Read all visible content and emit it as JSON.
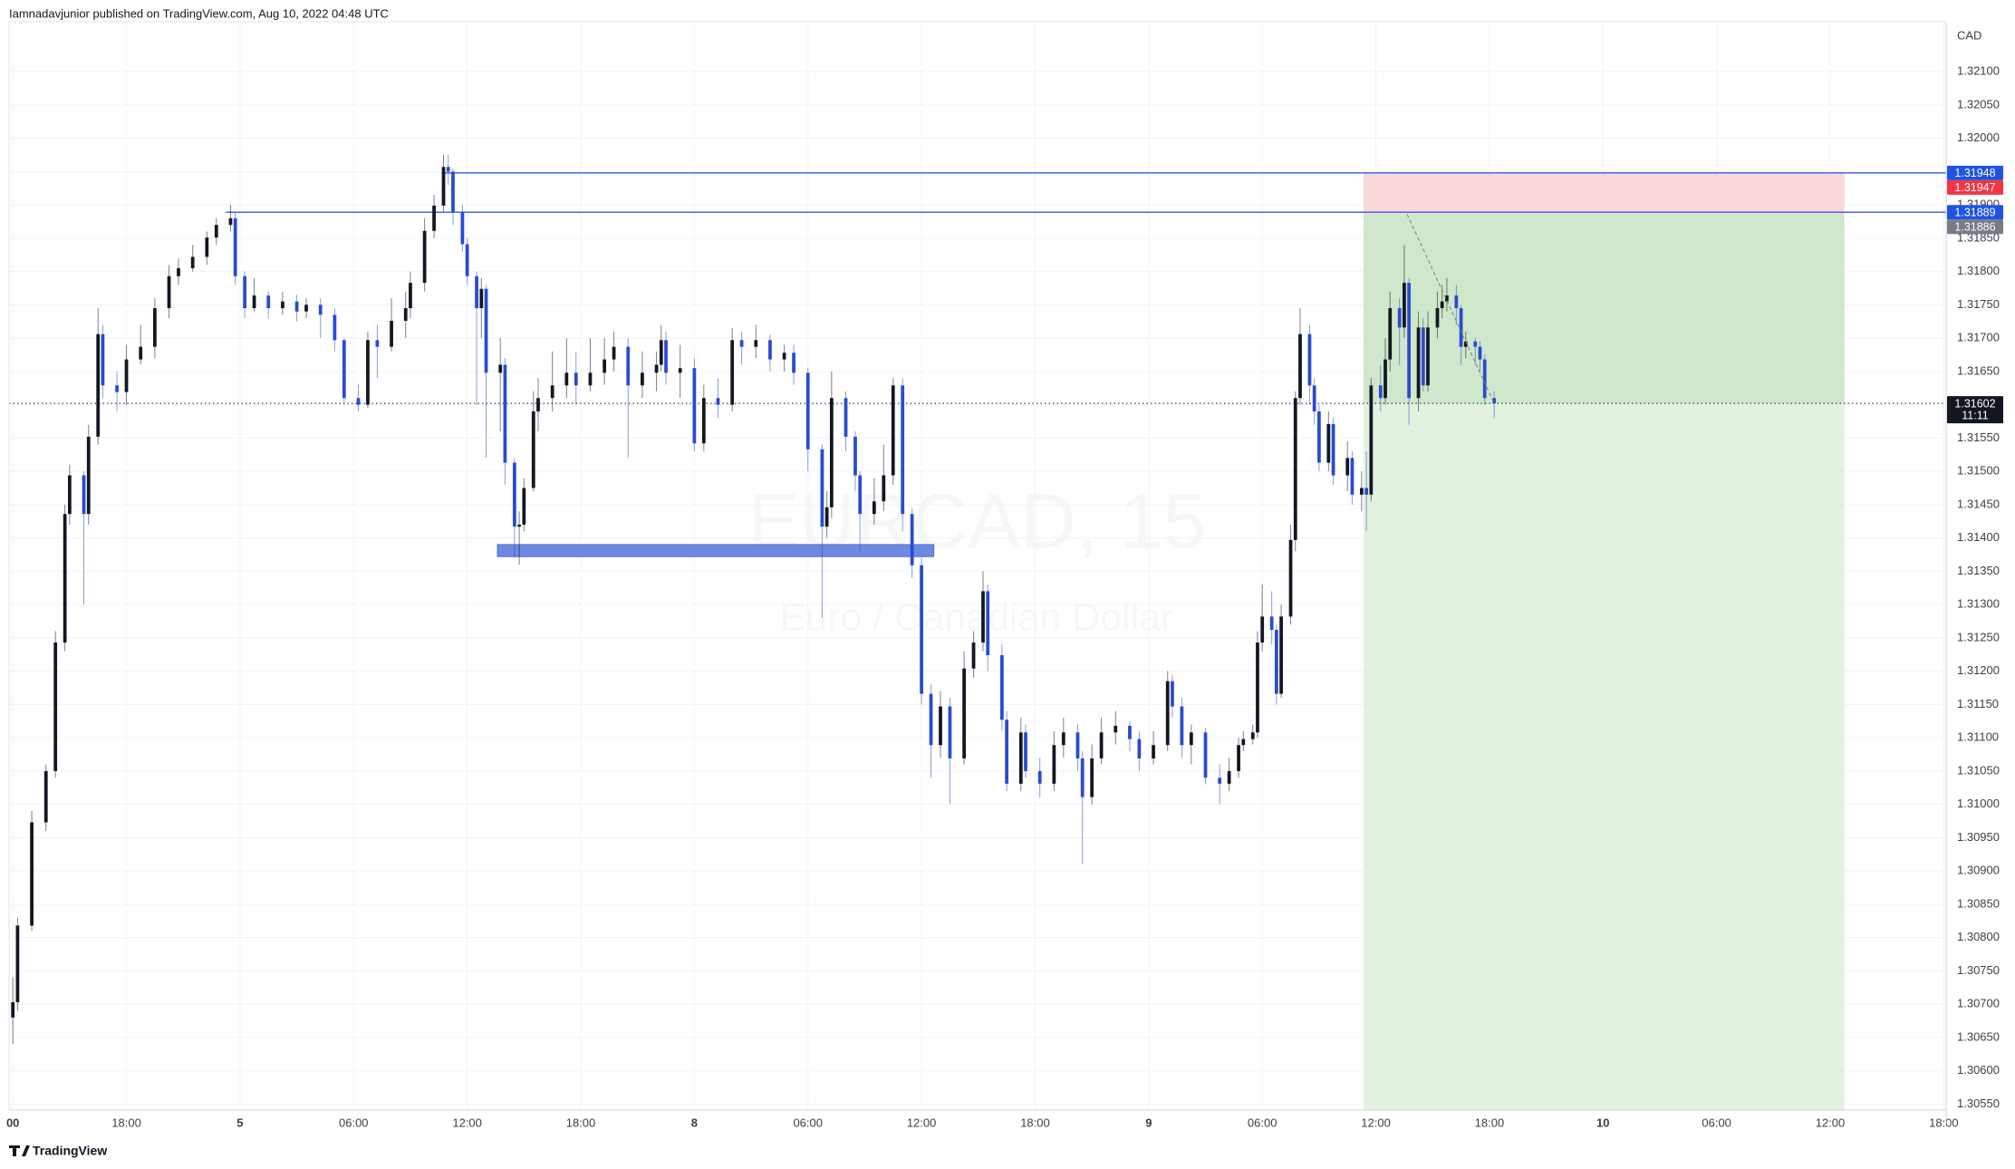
{
  "chart_data": {
    "type": "candlestick",
    "publisher_note": "Iamnadavjunior published on TradingView.com, Aug 10, 2022 04:48 UTC",
    "currency": "CAD",
    "logo": "TradingView",
    "watermark": {
      "symbol": "EURCAD, 15",
      "description": "Euro / Canadian Dollar"
    },
    "up_color": "#131722",
    "down_color": "#2a4bcf",
    "x": [
      0,
      1,
      4,
      7,
      9,
      11,
      12,
      15,
      16,
      18,
      19,
      22,
      24,
      27,
      30,
      33,
      35,
      38,
      41,
      43,
      46,
      47,
      49,
      51,
      54,
      57,
      60,
      62,
      65,
      68,
      70,
      73,
      75,
      77,
      80,
      83,
      84,
      87,
      89,
      91,
      92,
      93,
      95,
      96,
      98,
      99,
      100,
      103,
      104,
      106,
      107,
      108,
      110,
      111,
      114,
      117,
      119,
      122,
      125,
      127,
      130,
      133,
      136,
      137,
      138,
      141,
      144,
      146,
      149,
      152,
      154,
      157,
      160,
      163,
      165,
      168,
      171,
      172,
      173,
      176,
      178,
      179,
      182,
      184,
      186,
      188,
      190,
      192,
      194,
      196,
      198,
      201,
      203,
      205,
      206,
      209,
      210,
      213,
      214,
      217,
      220,
      222,
      225,
      226,
      228,
      230,
      233,
      236,
      238,
      241,
      244,
      245,
      247,
      249,
      252,
      255,
      257,
      259,
      260,
      262,
      263,
      264,
      266,
      267,
      268,
      270,
      271,
      272,
      274,
      275,
      276,
      278,
      279,
      282,
      283,
      285,
      286,
      287,
      289,
      290,
      291,
      293,
      294,
      295,
      297,
      298,
      299,
      301,
      302,
      303,
      305,
      306,
      307,
      309,
      310,
      311,
      313
    ],
    "open": [
      1.3068,
      1.30703,
      1.30818,
      1.30973,
      1.3105,
      1.31243,
      1.31436,
      1.31494,
      1.31436,
      1.31552,
      1.31706,
      1.31629,
      1.31619,
      1.31668,
      1.31687,
      1.31745,
      1.31793,
      1.31805,
      1.31822,
      1.31851,
      1.3187,
      1.3188,
      1.31793,
      1.31745,
      1.31764,
      1.31745,
      1.31755,
      1.3174,
      1.3175,
      1.31735,
      1.31697,
      1.3161,
      1.316,
      1.31697,
      1.31687,
      1.31726,
      1.31745,
      1.31783,
      1.31861,
      1.31899,
      1.31957,
      1.3195,
      1.3189,
      1.31841,
      1.31793,
      1.31745,
      1.31774,
      1.31648,
      1.3166,
      1.31513,
      1.31417,
      1.3142,
      1.31475,
      1.3159,
      1.3161,
      1.31629,
      1.31648,
      1.31629,
      1.31648,
      1.31668,
      1.31687,
      1.31629,
      1.31648,
      1.3166,
      1.31697,
      1.31648,
      1.31655,
      1.31542,
      1.3161,
      1.316,
      1.31697,
      1.31687,
      1.31697,
      1.31668,
      1.31678,
      1.31648,
      1.31533,
      1.31417,
      1.31446,
      1.3161,
      1.31552,
      1.31494,
      1.31436,
      1.31455,
      1.31494,
      1.31629,
      1.31436,
      1.31359,
      1.31166,
      1.31089,
      1.31147,
      1.31069,
      1.31204,
      1.31243,
      1.3132,
      1.31224,
      1.31127,
      1.31031,
      1.31108,
      1.3105,
      1.31031,
      1.31089,
      1.31108,
      1.31069,
      1.31011,
      1.31069,
      1.31108,
      1.31118,
      1.31098,
      1.31069,
      1.31089,
      1.31185,
      1.31147,
      1.31089,
      1.31108,
      1.3104,
      1.31031,
      1.3105,
      1.31089,
      1.31098,
      1.31108,
      1.31243,
      1.31282,
      1.31262,
      1.31166,
      1.31282,
      1.31397,
      1.3161,
      1.31706,
      1.31629,
      1.3159,
      1.31513,
      1.31571,
      1.31494,
      1.3152,
      1.31465,
      1.31475,
      1.31465,
      1.31629,
      1.3161,
      1.31668,
      1.31745,
      1.31716,
      1.31783,
      1.3161,
      1.31716,
      1.31629,
      1.31716,
      1.31745,
      1.31755,
      1.31764,
      1.31745,
      1.31687,
      1.31695,
      1.31687,
      1.31668,
      1.3161
    ],
    "high": [
      1.3074,
      1.3083,
      1.3099,
      1.3106,
      1.3126,
      1.3145,
      1.3151,
      1.315,
      1.3157,
      1.31745,
      1.3172,
      1.3165,
      1.3169,
      1.3172,
      1.3176,
      1.3181,
      1.3182,
      1.3184,
      1.3186,
      1.3188,
      1.319,
      1.3189,
      1.318,
      1.3179,
      1.3177,
      1.3177,
      1.31765,
      1.3176,
      1.3176,
      1.31745,
      1.317,
      1.3163,
      1.3171,
      1.3172,
      1.3176,
      1.3177,
      1.318,
      1.3188,
      1.31915,
      1.31975,
      1.31975,
      1.31955,
      1.319,
      1.3185,
      1.318,
      1.3179,
      1.3178,
      1.317,
      1.3167,
      1.3152,
      1.3144,
      1.3149,
      1.3162,
      1.3164,
      1.3168,
      1.317,
      1.3168,
      1.317,
      1.317,
      1.3171,
      1.317,
      1.3168,
      1.3168,
      1.3172,
      1.3171,
      1.3169,
      1.3167,
      1.3163,
      1.3164,
      1.31715,
      1.3171,
      1.3172,
      1.31705,
      1.3169,
      1.3169,
      1.31655,
      1.3154,
      1.3147,
      1.3165,
      1.3162,
      1.3156,
      1.315,
      1.3149,
      1.3154,
      1.3164,
      1.3164,
      1.31445,
      1.3137,
      1.3118,
      1.3117,
      1.3116,
      1.3123,
      1.3126,
      1.3135,
      1.3133,
      1.3124,
      1.3114,
      1.3113,
      1.3112,
      1.3107,
      1.3111,
      1.3113,
      1.3112,
      1.3108,
      1.3109,
      1.3113,
      1.3114,
      1.31125,
      1.3111,
      1.3111,
      1.312,
      1.31195,
      1.3116,
      1.3112,
      1.31115,
      1.3106,
      1.3107,
      1.311,
      1.3111,
      1.3112,
      1.3126,
      1.3133,
      1.3132,
      1.3127,
      1.313,
      1.3142,
      1.3162,
      1.31745,
      1.3172,
      1.3164,
      1.316,
      1.3159,
      1.3158,
      1.31545,
      1.3153,
      1.315,
      1.3153,
      1.3164,
      1.3166,
      1.317,
      1.3177,
      1.3176,
      1.3184,
      1.3179,
      1.3174,
      1.3173,
      1.3174,
      1.3177,
      1.3178,
      1.3179,
      1.3178,
      1.3175,
      1.3171,
      1.317,
      1.31695,
      1.31675,
      1.3162
    ],
    "low": [
      1.3064,
      1.3069,
      1.3081,
      1.3096,
      1.3104,
      1.3123,
      1.3142,
      1.313,
      1.3142,
      1.3154,
      1.3161,
      1.3159,
      1.316,
      1.3166,
      1.3167,
      1.3173,
      1.3178,
      1.318,
      1.3181,
      1.3184,
      1.3186,
      1.3178,
      1.3173,
      1.3174,
      1.3173,
      1.31735,
      1.31725,
      1.3173,
      1.317,
      1.3168,
      1.316,
      1.3159,
      1.31595,
      1.3164,
      1.3168,
      1.317,
      1.3173,
      1.3177,
      1.3185,
      1.3189,
      1.3193,
      1.3187,
      1.3183,
      1.3178,
      1.316,
      1.317,
      1.3152,
      1.3156,
      1.3148,
      1.3137,
      1.3136,
      1.3141,
      1.3147,
      1.3156,
      1.3159,
      1.3161,
      1.316,
      1.3162,
      1.3163,
      1.3165,
      1.3152,
      1.3161,
      1.3162,
      1.3165,
      1.3163,
      1.3161,
      1.3153,
      1.3153,
      1.3158,
      1.3159,
      1.3166,
      1.3167,
      1.3165,
      1.3165,
      1.3163,
      1.315,
      1.3128,
      1.314,
      1.3143,
      1.3153,
      1.3147,
      1.3138,
      1.3142,
      1.3144,
      1.3148,
      1.3141,
      1.3134,
      1.3115,
      1.3104,
      1.3107,
      1.31,
      1.3106,
      1.3119,
      1.3123,
      1.312,
      1.3111,
      1.3102,
      1.3102,
      1.3104,
      1.3101,
      1.3102,
      1.3107,
      1.3105,
      1.3091,
      1.31,
      1.3106,
      1.3109,
      1.3108,
      1.3105,
      1.3106,
      1.3108,
      1.3113,
      1.3107,
      1.3106,
      1.3103,
      1.31,
      1.3102,
      1.3104,
      1.3108,
      1.3109,
      1.311,
      1.3123,
      1.3124,
      1.3115,
      1.3116,
      1.3127,
      1.3138,
      1.316,
      1.316,
      1.3157,
      1.315,
      1.315,
      1.3148,
      1.3147,
      1.3145,
      1.3144,
      1.3141,
      1.31455,
      1.3159,
      1.316,
      1.3165,
      1.3166,
      1.317,
      1.3157,
      1.3159,
      1.3162,
      1.3162,
      1.317,
      1.3173,
      1.3174,
      1.3172,
      1.3166,
      1.3167,
      1.3166,
      1.3165,
      1.316,
      1.3158
    ],
    "close": [
      1.30703,
      1.30818,
      1.30973,
      1.3105,
      1.31243,
      1.31436,
      1.31494,
      1.31436,
      1.31552,
      1.31706,
      1.31629,
      1.31619,
      1.31668,
      1.31687,
      1.31745,
      1.31793,
      1.31805,
      1.31822,
      1.31851,
      1.3187,
      1.3188,
      1.31793,
      1.31745,
      1.31764,
      1.31745,
      1.31755,
      1.3174,
      1.3175,
      1.31735,
      1.31697,
      1.3161,
      1.316,
      1.31697,
      1.31687,
      1.31726,
      1.31745,
      1.31783,
      1.31861,
      1.31899,
      1.31957,
      1.3195,
      1.3189,
      1.31841,
      1.31793,
      1.31745,
      1.31774,
      1.31648,
      1.3166,
      1.31513,
      1.31417,
      1.3142,
      1.31475,
      1.3159,
      1.3161,
      1.31629,
      1.31648,
      1.31629,
      1.31648,
      1.31668,
      1.31687,
      1.31629,
      1.31648,
      1.3166,
      1.31697,
      1.31648,
      1.31655,
      1.31542,
      1.3161,
      1.316,
      1.31697,
      1.31687,
      1.31697,
      1.31668,
      1.31678,
      1.31648,
      1.31533,
      1.31417,
      1.31446,
      1.3161,
      1.31552,
      1.31494,
      1.31436,
      1.31455,
      1.31494,
      1.31629,
      1.31436,
      1.31359,
      1.31166,
      1.31089,
      1.31147,
      1.31069,
      1.31204,
      1.31243,
      1.3132,
      1.31224,
      1.31127,
      1.31031,
      1.31108,
      1.3105,
      1.31031,
      1.31089,
      1.31108,
      1.31069,
      1.31011,
      1.31069,
      1.31108,
      1.31118,
      1.31098,
      1.31069,
      1.31089,
      1.31185,
      1.31147,
      1.31089,
      1.31108,
      1.3104,
      1.31031,
      1.3105,
      1.31089,
      1.31098,
      1.31108,
      1.31243,
      1.31282,
      1.31262,
      1.31166,
      1.31282,
      1.31397,
      1.3161,
      1.31706,
      1.31629,
      1.3159,
      1.31513,
      1.31571,
      1.31494,
      1.3152,
      1.31465,
      1.31475,
      1.31465,
      1.31629,
      1.3161,
      1.31668,
      1.31745,
      1.31716,
      1.31783,
      1.3161,
      1.31716,
      1.31629,
      1.31716,
      1.31745,
      1.31755,
      1.31764,
      1.31745,
      1.31687,
      1.31695,
      1.31687,
      1.31668,
      1.3161,
      1.31602
    ],
    "xlim": [
      -0.8,
      408.5
    ],
    "xticks": [
      {
        "value": 0,
        "label": "00"
      },
      {
        "value": 24,
        "label": "18:00"
      },
      {
        "value": 48,
        "label": "5"
      },
      {
        "value": 72,
        "label": "06:00"
      },
      {
        "value": 96,
        "label": "12:00"
      },
      {
        "value": 120,
        "label": "18:00"
      },
      {
        "value": 144,
        "label": "8"
      },
      {
        "value": 168,
        "label": "06:00"
      },
      {
        "value": 192,
        "label": "12:00"
      },
      {
        "value": 216,
        "label": "18:00"
      },
      {
        "value": 240,
        "label": "9"
      },
      {
        "value": 264,
        "label": "06:00"
      },
      {
        "value": 288,
        "label": "12:00"
      },
      {
        "value": 312,
        "label": "18:00"
      },
      {
        "value": 336,
        "label": "10"
      },
      {
        "value": 360,
        "label": "06:00"
      },
      {
        "value": 384,
        "label": "12:00"
      },
      {
        "value": 408,
        "label": "18:00"
      }
    ],
    "ylim": [
      1.30541,
      1.32175
    ],
    "yticks": [
      {
        "value": 1.3055,
        "label": "1.30550"
      },
      {
        "value": 1.306,
        "label": "1.30600"
      },
      {
        "value": 1.3065,
        "label": "1.30650"
      },
      {
        "value": 1.307,
        "label": "1.30700"
      },
      {
        "value": 1.3075,
        "label": "1.30750"
      },
      {
        "value": 1.308,
        "label": "1.30800"
      },
      {
        "value": 1.3085,
        "label": "1.30850"
      },
      {
        "value": 1.309,
        "label": "1.30900"
      },
      {
        "value": 1.3095,
        "label": "1.30950"
      },
      {
        "value": 1.31,
        "label": "1.31000"
      },
      {
        "value": 1.3105,
        "label": "1.31050"
      },
      {
        "value": 1.311,
        "label": "1.31100"
      },
      {
        "value": 1.3115,
        "label": "1.31150"
      },
      {
        "value": 1.312,
        "label": "1.31200"
      },
      {
        "value": 1.3125,
        "label": "1.31250"
      },
      {
        "value": 1.313,
        "label": "1.31300"
      },
      {
        "value": 1.3135,
        "label": "1.31350"
      },
      {
        "value": 1.314,
        "label": "1.31400"
      },
      {
        "value": 1.3145,
        "label": "1.31450"
      },
      {
        "value": 1.315,
        "label": "1.31500"
      },
      {
        "value": 1.3155,
        "label": "1.31550"
      },
      {
        "value": 1.316,
        "label": "1.31600"
      },
      {
        "value": 1.3165,
        "label": "1.31650"
      },
      {
        "value": 1.317,
        "label": "1.31700"
      },
      {
        "value": 1.3175,
        "label": "1.31750"
      },
      {
        "value": 1.318,
        "label": "1.31800"
      },
      {
        "value": 1.3185,
        "label": "1.31850"
      },
      {
        "value": 1.319,
        "label": "1.31900"
      },
      {
        "value": 1.3195,
        "label": "1.31950"
      },
      {
        "value": 1.32,
        "label": "1.32000"
      },
      {
        "value": 1.3205,
        "label": "1.32050"
      },
      {
        "value": 1.321,
        "label": "1.32100"
      }
    ],
    "grid": true,
    "horizontal_lines": [
      {
        "price": 1.31948,
        "x_start": 91,
        "color": "#2a5ee8"
      },
      {
        "price": 1.31889,
        "x_start": 45,
        "color": "#2a5ee8"
      }
    ],
    "zone": {
      "x": [
        102.4,
        194.6
      ],
      "price": [
        1.31372,
        1.3139
      ],
      "color": "#7088e0"
    },
    "position": {
      "x": [
        285.4,
        387
      ],
      "stop": 1.31947,
      "entry": 1.31886,
      "target": 1.305,
      "stop_color": "#fbd7da",
      "target_color": "#e3f1e0",
      "progress_color": "#cfe7cb"
    },
    "trend_line": {
      "x": [
        294.6,
        313
      ],
      "price": [
        1.31886,
        1.31602
      ],
      "color": "#6c8a6c"
    },
    "last_price": {
      "value": 1.31602,
      "countdown": "11:11",
      "color": "#131722"
    },
    "price_labels": [
      {
        "value": 1.31948,
        "color": "#1e53e5"
      },
      {
        "value": 1.31947,
        "color": "#f23645"
      },
      {
        "value": 1.31889,
        "color": "#1e53e5"
      },
      {
        "value": 1.31886,
        "color": "#787b86"
      }
    ]
  }
}
